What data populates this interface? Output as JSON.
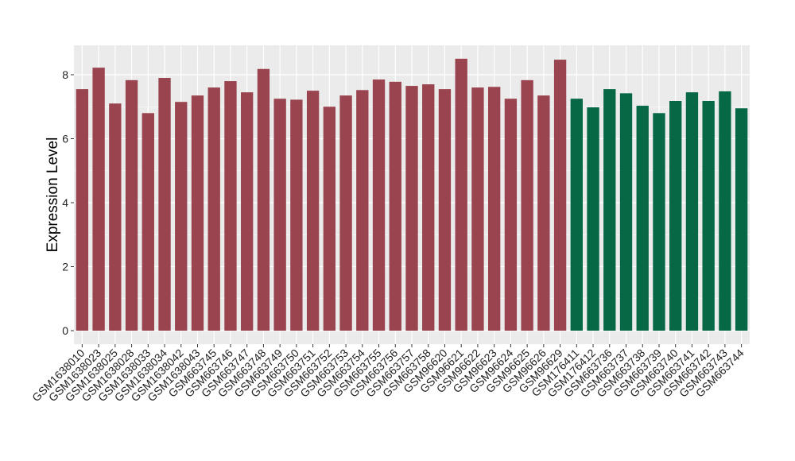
{
  "chart_data": {
    "type": "bar",
    "title": "",
    "xlabel": "",
    "ylabel": "Expression Level",
    "ylim": [
      0,
      8.9
    ],
    "yticks": [
      0,
      2,
      4,
      6,
      8
    ],
    "grid": true,
    "legend": "none",
    "categories": [
      "GSM1638010",
      "GSM1638023",
      "GSM1638025",
      "GSM1638028",
      "GSM1638033",
      "GSM1638034",
      "GSM1638042",
      "GSM1638043",
      "GSM663745",
      "GSM663746",
      "GSM663747",
      "GSM663748",
      "GSM663749",
      "GSM663750",
      "GSM663751",
      "GSM663752",
      "GSM663753",
      "GSM663754",
      "GSM663755",
      "GSM663756",
      "GSM663757",
      "GSM663758",
      "GSM96620",
      "GSM96621",
      "GSM96622",
      "GSM96623",
      "GSM96624",
      "GSM96625",
      "GSM96626",
      "GSM96629",
      "GSM176411",
      "GSM176412",
      "GSM663736",
      "GSM663737",
      "GSM663738",
      "GSM663739",
      "GSM663740",
      "GSM663741",
      "GSM663742",
      "GSM663743",
      "GSM663744"
    ],
    "values": [
      7.55,
      8.22,
      7.1,
      7.83,
      6.8,
      7.9,
      7.15,
      7.35,
      7.6,
      7.8,
      7.45,
      8.18,
      7.25,
      7.22,
      7.5,
      7.0,
      7.35,
      7.52,
      7.85,
      7.78,
      7.65,
      7.7,
      7.55,
      8.5,
      7.6,
      7.62,
      7.25,
      7.83,
      7.35,
      8.47,
      7.25,
      6.98,
      7.55,
      7.42,
      7.03,
      6.8,
      7.18,
      7.45,
      7.18,
      7.48,
      6.95
    ],
    "group_colors": [
      "#9a4450",
      "#9a4450",
      "#9a4450",
      "#9a4450",
      "#9a4450",
      "#9a4450",
      "#9a4450",
      "#9a4450",
      "#9a4450",
      "#9a4450",
      "#9a4450",
      "#9a4450",
      "#9a4450",
      "#9a4450",
      "#9a4450",
      "#9a4450",
      "#9a4450",
      "#9a4450",
      "#9a4450",
      "#9a4450",
      "#9a4450",
      "#9a4450",
      "#9a4450",
      "#9a4450",
      "#9a4450",
      "#9a4450",
      "#9a4450",
      "#9a4450",
      "#9a4450",
      "#9a4450",
      "#066845",
      "#066845",
      "#066845",
      "#066845",
      "#066845",
      "#066845",
      "#066845",
      "#066845",
      "#066845",
      "#066845",
      "#066845"
    ],
    "panel_color": "#ebebeb",
    "grid_color": "#ffffff"
  }
}
